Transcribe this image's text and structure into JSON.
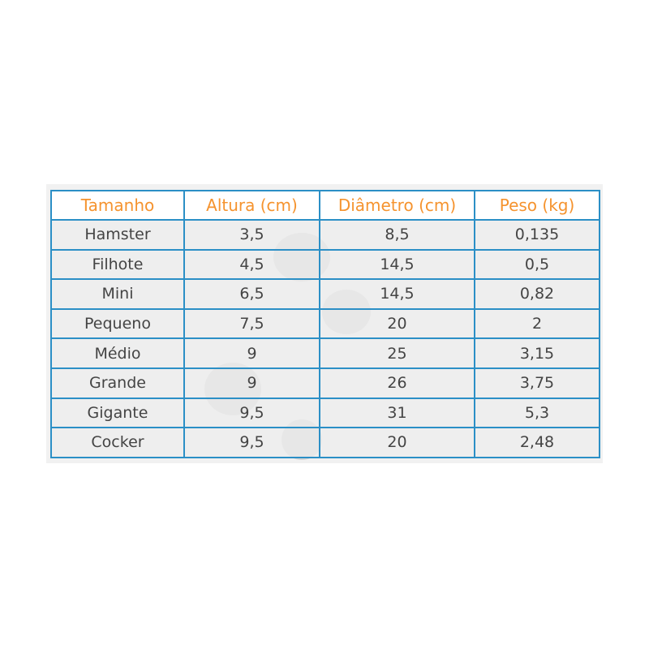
{
  "table": {
    "headers": [
      "Tamanho",
      "Altura (cm)",
      "Diâmetro (cm)",
      "Peso (kg)"
    ],
    "rows": [
      [
        "Hamster",
        "3,5",
        "8,5",
        "0,135"
      ],
      [
        "Filhote",
        "4,5",
        "14,5",
        "0,5"
      ],
      [
        "Mini",
        "6,5",
        "14,5",
        "0,82"
      ],
      [
        "Pequeno",
        "7,5",
        "20",
        "2"
      ],
      [
        "Médio",
        "9",
        "25",
        "3,15"
      ],
      [
        "Grande",
        "9",
        "26",
        "3,75"
      ],
      [
        "Gigante",
        "9,5",
        "31",
        "5,3"
      ],
      [
        "Cocker",
        "9,5",
        "20",
        "2,48"
      ]
    ]
  },
  "colors": {
    "border": "#2b8fc6",
    "header_text": "#f5932e",
    "row_bg": "#ececec"
  },
  "watermark_icon": "paw-print-icon"
}
